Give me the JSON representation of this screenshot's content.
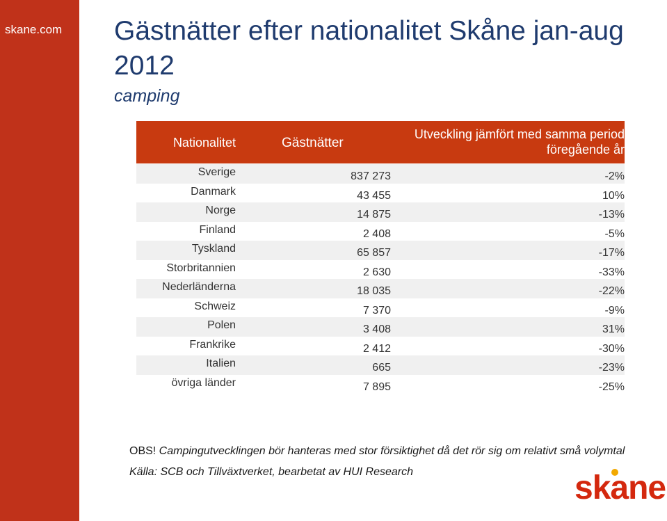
{
  "sidebar": {
    "site": "skane.com"
  },
  "slide": {
    "title": "Gästnätter efter nationalitet Skåne jan-aug 2012",
    "subtitle": "camping"
  },
  "table": {
    "headers": {
      "nationalitet": "Nationalitet",
      "gastnatter": "Gästnätter",
      "utveckling_line1": "Utveckling jämfört med samma period",
      "utveckling_line2": "föregående år"
    },
    "rows": [
      {
        "nat": "Sverige",
        "gast": "837 273",
        "utv": "-2%"
      },
      {
        "nat": "Danmark",
        "gast": "43 455",
        "utv": "10%"
      },
      {
        "nat": "Norge",
        "gast": "14 875",
        "utv": "-13%"
      },
      {
        "nat": "Finland",
        "gast": "2 408",
        "utv": "-5%"
      },
      {
        "nat": "Tyskland",
        "gast": "65 857",
        "utv": "-17%"
      },
      {
        "nat": "Storbritannien",
        "gast": "2 630",
        "utv": "-33%"
      },
      {
        "nat": "Nederländerna",
        "gast": "18 035",
        "utv": "-22%"
      },
      {
        "nat": "Schweiz",
        "gast": "7 370",
        "utv": "-9%"
      },
      {
        "nat": "Polen",
        "gast": "3 408",
        "utv": "31%"
      },
      {
        "nat": "Frankrike",
        "gast": "2 412",
        "utv": "-30%"
      },
      {
        "nat": "Italien",
        "gast": "665",
        "utv": "-23%"
      },
      {
        "nat": "övriga länder",
        "gast": "7 895",
        "utv": "-25%"
      }
    ]
  },
  "footer": {
    "obs_label": "OBS!",
    "obs_text": " Campingutvecklingen bör hanteras med stor försiktighet då det rör sig om relativt små volymtal",
    "source": "Källa: SCB och Tillväxtverket, bearbetat av HUI Research"
  },
  "logo": {
    "text": "skane",
    "icon": "skane-logo-icon"
  },
  "colors": {
    "sidebar": "#c0321a",
    "header": "#c83a10",
    "title": "#1f3b6e",
    "logo": "#d4280e",
    "logo_dot": "#f2a900"
  }
}
